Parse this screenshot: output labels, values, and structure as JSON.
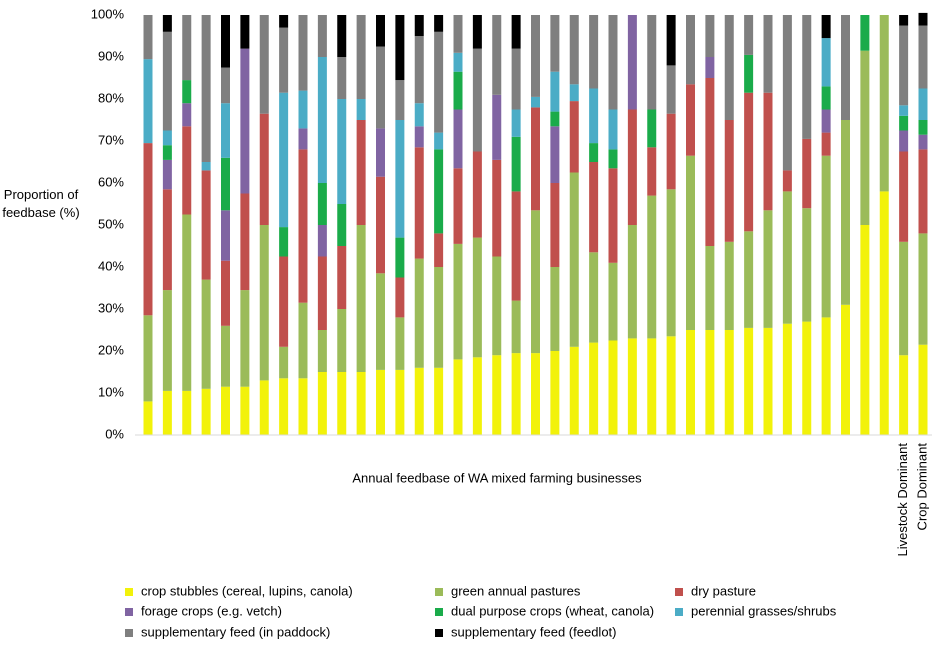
{
  "chart_data": {
    "type": "stacked_bar",
    "xlabel": "Annual feedbase of  WA mixed farming businesses",
    "ylabel": "Proportion of feedbase (%)",
    "categories": [
      null,
      null,
      null,
      null,
      null,
      null,
      null,
      null,
      null,
      null,
      null,
      null,
      null,
      null,
      null,
      null,
      null,
      null,
      null,
      null,
      null,
      null,
      null,
      null,
      null,
      null,
      null,
      null,
      null,
      null,
      null,
      null,
      null,
      null,
      null,
      null,
      null,
      null,
      null,
      "Livestock Dominant",
      "Crop Dominant"
    ],
    "ylim": [
      0,
      100
    ],
    "yticks": [
      {
        "value": 0,
        "label": "0%"
      },
      {
        "value": 10,
        "label": "10%"
      },
      {
        "value": 20,
        "label": "20%"
      },
      {
        "value": 30,
        "label": "30%"
      },
      {
        "value": 40,
        "label": "40%"
      },
      {
        "value": 50,
        "label": "50%"
      },
      {
        "value": 60,
        "label": "60%"
      },
      {
        "value": 70,
        "label": "70%"
      },
      {
        "value": 80,
        "label": "80%"
      },
      {
        "value": 90,
        "label": "90%"
      },
      {
        "value": 100,
        "label": "100%"
      }
    ],
    "grid": false,
    "series": [
      {
        "name": "crop stubbles (cereal, lupins, canola)",
        "color": "#f2f20a",
        "values": [
          8,
          10.5,
          10.5,
          11,
          11.5,
          11.5,
          13,
          13.5,
          13.5,
          15,
          15,
          15,
          15.5,
          15.5,
          16,
          16,
          18,
          18.5,
          19,
          19.5,
          19.5,
          20,
          21,
          22,
          22.5,
          23,
          23,
          23.5,
          25,
          25,
          25,
          25.5,
          25.5,
          26.5,
          27,
          28,
          31,
          50,
          58,
          19,
          21.5
        ]
      },
      {
        "name": "green annual pastures",
        "color": "#9bbb59",
        "values": [
          20.5,
          24,
          42,
          26,
          14.5,
          23,
          37,
          7.5,
          18,
          10,
          15,
          35,
          23,
          12.5,
          26,
          24,
          27.5,
          28.5,
          23.5,
          12.5,
          34,
          20,
          41.5,
          21.5,
          18.5,
          27,
          34,
          35,
          41.5,
          20,
          21,
          23,
          28,
          31.5,
          27,
          38.5,
          44,
          41.5,
          42,
          27,
          26.5
        ]
      },
      {
        "name": "dry pasture",
        "color": "#c0504d",
        "values": [
          41,
          24,
          21,
          26,
          15.5,
          23,
          26.5,
          21.5,
          36.5,
          17.5,
          15,
          25,
          23,
          9.5,
          26.5,
          8,
          18,
          20.5,
          23,
          26,
          24.5,
          20,
          17,
          21.5,
          22.5,
          27.5,
          11.5,
          18,
          17,
          40,
          29,
          33,
          28,
          5,
          16.5,
          5.5,
          0,
          0,
          0,
          21.5,
          20
        ]
      },
      {
        "name": "forage crops (e.g. vetch)",
        "color": "#8064a2",
        "values": [
          0,
          7,
          5.5,
          0,
          12,
          34.5,
          0,
          0,
          5,
          7.5,
          0,
          0,
          11.5,
          0,
          5,
          0,
          14,
          0,
          15.5,
          0,
          0,
          13.5,
          0,
          0,
          0,
          22.5,
          0,
          0,
          0,
          5,
          0,
          0,
          0,
          0,
          0,
          5.5,
          0,
          0,
          0,
          5,
          3.5
        ]
      },
      {
        "name": "dual purpose crops (wheat, canola)",
        "color": "#1aab4a",
        "values": [
          0,
          3.5,
          5.5,
          0,
          12.5,
          0,
          0,
          7,
          0,
          10,
          10,
          0,
          0,
          9.5,
          0,
          20,
          9,
          0,
          0,
          13,
          0,
          3.5,
          0,
          4.5,
          4.5,
          0,
          9,
          0,
          0,
          0,
          0,
          9,
          0,
          0,
          0,
          5.5,
          0,
          8.5,
          0,
          3.5,
          3.5
        ]
      },
      {
        "name": "perennial grasses/shrubs",
        "color": "#4bacc6",
        "values": [
          20,
          3.5,
          0,
          2,
          13,
          0,
          0,
          32,
          9,
          30,
          25,
          5,
          0,
          28,
          5.5,
          4,
          4.5,
          0,
          0,
          6.5,
          2.5,
          9.5,
          4,
          13,
          9.5,
          0,
          0,
          0,
          0,
          0,
          0,
          0,
          0,
          0,
          0,
          11.5,
          0,
          0,
          0,
          2.5,
          7.5
        ]
      },
      {
        "name": "supplementary feed (in paddock)",
        "color": "#7f7f7f",
        "values": [
          10.5,
          23.5,
          15.5,
          35,
          8.5,
          0,
          23.5,
          15.5,
          18,
          10,
          10,
          20,
          19.5,
          9.5,
          16,
          24,
          9,
          24.5,
          19,
          14.5,
          19.5,
          13.5,
          16.5,
          17.5,
          22.5,
          0,
          22.5,
          11.5,
          16.5,
          10,
          25,
          9.5,
          18.5,
          37,
          29.5,
          0,
          25,
          0,
          0,
          19,
          15
        ]
      },
      {
        "name": "supplementary feed (feedlot)",
        "color": "#000000",
        "values": [
          0,
          4,
          0,
          0,
          12.5,
          8,
          0,
          3,
          0,
          0,
          10,
          0,
          7.5,
          15.5,
          5,
          4,
          0,
          8,
          0,
          8,
          0,
          0,
          0,
          0,
          0,
          0,
          0,
          12,
          0,
          0,
          0,
          0,
          0,
          0,
          0,
          5.5,
          0,
          0,
          0,
          2.5,
          3
        ]
      }
    ]
  }
}
